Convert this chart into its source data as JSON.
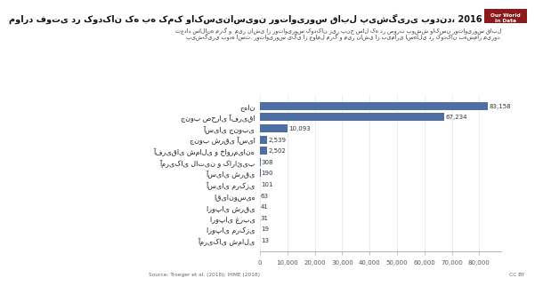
{
  "title": "موارد فوتی در کودکان که به کمک واکسیناسیون روتاویروس قابل پیشگیری بودند، 2016",
  "subtitle_line1": "تعداد سالانه مرگ و  میر ناشی از روتاویروس کودکان زیر پنج سال که در صورت پوشش واکسن روتاویروس قابل",
  "subtitle_line2": "پیشگیری بوده است. روتاویروس یکی از عوامل مرگ و میر ناشی از بیماری اسهالی در کودکان بهشمار میرود.",
  "categories": [
    "جهان",
    "جنوب صحرای آفریقا",
    "آسیای جنوبی",
    "جنوب شرقی آسیا",
    "آفریقای شمالی و خاورمیانه",
    "آمریکای لاتین و کارائیب",
    "آسیای شرقی",
    "آسیای مرکزی",
    "اقیانوسیه",
    "اروپای شرقی",
    "اروپای غربی",
    "اروپای مرکزی",
    "آمریکای شمالی"
  ],
  "values": [
    83158,
    67234,
    10093,
    2539,
    2502,
    308,
    190,
    101,
    63,
    41,
    31,
    19,
    13
  ],
  "bar_color": "#4d6fa3",
  "value_labels": [
    "83,158",
    "67,234",
    "10,093",
    "2,539",
    "2,502",
    "308",
    "190",
    "101",
    "63",
    "41",
    "31",
    "19",
    "13"
  ],
  "xlim": [
    0,
    88000
  ],
  "xticks": [
    0,
    10000,
    20000,
    30000,
    40000,
    50000,
    60000,
    70000,
    80000
  ],
  "xtick_labels": [
    "0",
    "10,000",
    "20,000",
    "30,000",
    "40,000",
    "50,000",
    "60,000",
    "70,000",
    "80,000"
  ],
  "source_text": "Source: Troeger et al. (2018); IHME (2018)",
  "cc_text": "CC BY",
  "background_color": "#ffffff",
  "logo_line1": "Our World",
  "logo_line2": "in Data",
  "logo_bg": "#8b1a1a"
}
